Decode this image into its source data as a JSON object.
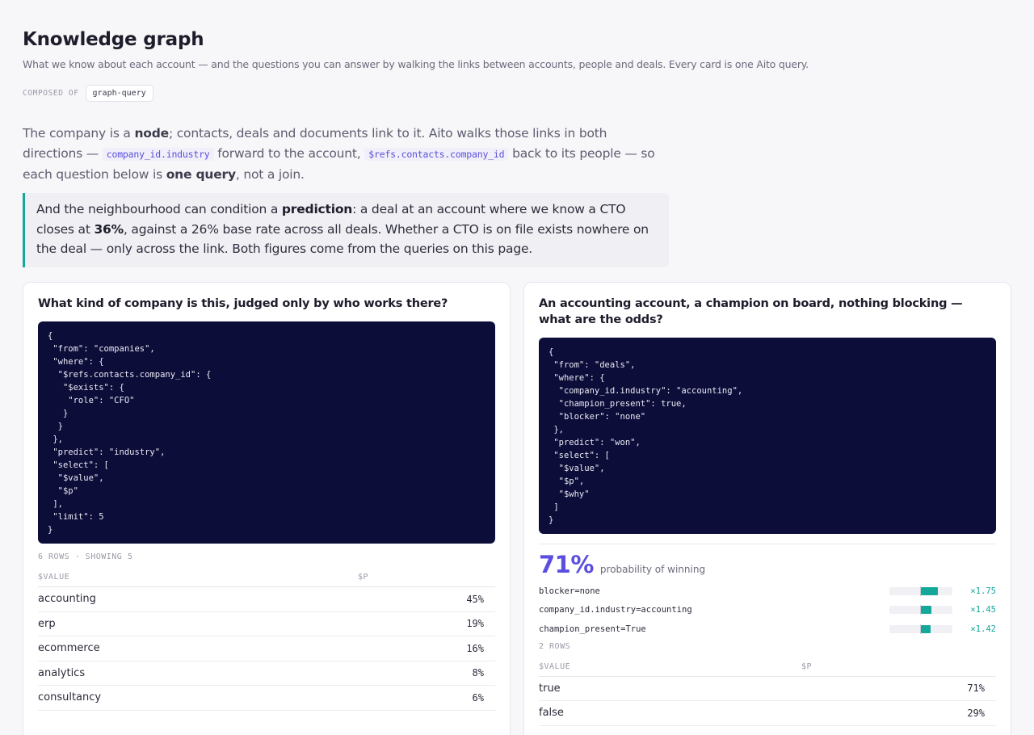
{
  "header": {
    "title": "Knowledge graph",
    "subtitle": "What we know about each account — and the questions you can answer by walking the links between accounts, people and deals. Every card is one Aito query.",
    "composed_label": "COMPOSED OF",
    "composed_chip": "graph-query"
  },
  "intro": {
    "t1": "The company is a ",
    "b1": "node",
    "t2": "; contacts, deals and documents link to it. Aito walks those links in both directions — ",
    "code1": "company_id.industry",
    "t3": " forward to the account, ",
    "code2": "$refs.contacts.company_id",
    "t4": " back to its people — so each question below is ",
    "b2": "one query",
    "t5": ", not a join."
  },
  "callout": {
    "t1": "And the neighbourhood can condition a ",
    "b1": "prediction",
    "t2": ": a deal at an account where we know a CTO closes at ",
    "b2": "36%",
    "t3": ", against a 26% base rate across all deals. Whether a CTO is on file exists nowhere on the deal — only across the link. Both figures come from the queries on this page."
  },
  "card_left": {
    "question": "What kind of company is this, judged only by who works there?",
    "code": "{\n \"from\": \"companies\",\n \"where\": {\n  \"$refs.contacts.company_id\": {\n   \"$exists\": {\n    \"role\": \"CFO\"\n   }\n  }\n },\n \"predict\": \"industry\",\n \"select\": [\n  \"$value\",\n  \"$p\"\n ],\n \"limit\": 5\n}",
    "rows_label": "6 ROWS · SHOWING 5",
    "col_value": "$VALUE",
    "col_p": "$P",
    "rows": [
      {
        "value": "accounting",
        "p": "45%"
      },
      {
        "value": "erp",
        "p": "19%"
      },
      {
        "value": "ecommerce",
        "p": "16%"
      },
      {
        "value": "analytics",
        "p": "8%"
      },
      {
        "value": "consultancy",
        "p": "6%"
      }
    ]
  },
  "card_right": {
    "question": "An accounting account, a champion on board, nothing blocking — what are the odds?",
    "code": "{\n \"from\": \"deals\",\n \"where\": {\n  \"company_id.industry\": \"accounting\",\n  \"champion_present\": true,\n  \"blocker\": \"none\"\n },\n \"predict\": \"won\",\n \"select\": [\n  \"$value\",\n  \"$p\",\n  \"$why\"\n ]\n}",
    "prob_value": "71%",
    "prob_text": "probability of winning",
    "why": [
      {
        "name": "blocker=none",
        "lift": "×1.75",
        "lift_value": 1.75
      },
      {
        "name": "company_id.industry=accounting",
        "lift": "×1.45",
        "lift_value": 1.45
      },
      {
        "name": "champion_present=True",
        "lift": "×1.42",
        "lift_value": 1.42
      }
    ],
    "rows_label": "2 ROWS",
    "col_value": "$VALUE",
    "col_p": "$P",
    "rows": [
      {
        "value": "true",
        "p": "71%"
      },
      {
        "value": "false",
        "p": "29%"
      }
    ]
  },
  "colors": {
    "accent_purple": "#5b4fe0",
    "accent_teal": "#14a89a",
    "code_bg": "#0d0d3a"
  }
}
